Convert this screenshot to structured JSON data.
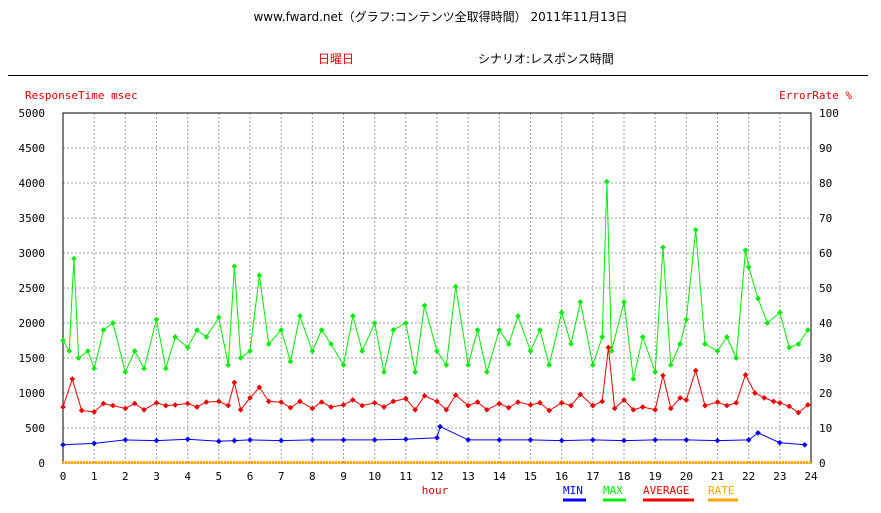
{
  "header": {
    "title": "www.fward.net（グラフ:コンテンツ全取得時間） 2011年11月13日",
    "day": "日曜日",
    "scenario": "シナリオ:レスポンス時間"
  },
  "chart_data": {
    "type": "line",
    "y_left_label": "ResponseTime msec",
    "y_right_label": "ErrorRate %",
    "xlabel": "hour",
    "xlim": [
      0,
      24
    ],
    "ylim_left": [
      0,
      5000
    ],
    "ylim_right": [
      0,
      100
    ],
    "x_ticks": [
      "0",
      "1",
      "2",
      "3",
      "4",
      "5",
      "6",
      "7",
      "8",
      "9",
      "10",
      "11",
      "12",
      "13",
      "14",
      "15",
      "16",
      "17",
      "18",
      "19",
      "20",
      "21",
      "22",
      "23",
      "24"
    ],
    "y_left_ticks": [
      "0",
      "500",
      "1000",
      "1500",
      "2000",
      "2500",
      "3000",
      "3500",
      "4000",
      "4500",
      "5000"
    ],
    "y_right_ticks": [
      "0",
      "10",
      "20",
      "30",
      "40",
      "50",
      "60",
      "70",
      "80",
      "90",
      "100"
    ],
    "grid": true,
    "legend_position": "bottom-right",
    "series": [
      {
        "name": "MIN",
        "axis": "left",
        "color": "#0000ff",
        "points": [
          [
            0,
            260
          ],
          [
            1,
            280
          ],
          [
            2,
            330
          ],
          [
            3,
            320
          ],
          [
            4,
            340
          ],
          [
            5,
            310
          ],
          [
            5.5,
            320
          ],
          [
            6,
            330
          ],
          [
            7,
            320
          ],
          [
            8,
            330
          ],
          [
            9,
            330
          ],
          [
            10,
            330
          ],
          [
            11,
            340
          ],
          [
            12,
            360
          ],
          [
            12.1,
            520
          ],
          [
            13,
            330
          ],
          [
            14,
            330
          ],
          [
            15,
            330
          ],
          [
            16,
            320
          ],
          [
            17,
            330
          ],
          [
            18,
            320
          ],
          [
            19,
            330
          ],
          [
            20,
            330
          ],
          [
            21,
            320
          ],
          [
            22,
            330
          ],
          [
            22.3,
            430
          ],
          [
            23,
            290
          ],
          [
            23.8,
            260
          ]
        ]
      },
      {
        "name": "MAX",
        "axis": "left",
        "color": "#00ee00",
        "points": [
          [
            0,
            1750
          ],
          [
            0.2,
            1600
          ],
          [
            0.35,
            2920
          ],
          [
            0.5,
            1500
          ],
          [
            0.8,
            1600
          ],
          [
            1,
            1350
          ],
          [
            1.3,
            1900
          ],
          [
            1.6,
            2000
          ],
          [
            2,
            1300
          ],
          [
            2.3,
            1600
          ],
          [
            2.6,
            1350
          ],
          [
            3,
            2050
          ],
          [
            3.3,
            1350
          ],
          [
            3.6,
            1800
          ],
          [
            4,
            1650
          ],
          [
            4.3,
            1900
          ],
          [
            4.6,
            1800
          ],
          [
            5,
            2080
          ],
          [
            5.3,
            1400
          ],
          [
            5.5,
            2810
          ],
          [
            5.7,
            1500
          ],
          [
            6,
            1600
          ],
          [
            6.3,
            2680
          ],
          [
            6.6,
            1700
          ],
          [
            7,
            1900
          ],
          [
            7.3,
            1450
          ],
          [
            7.6,
            2100
          ],
          [
            8,
            1600
          ],
          [
            8.3,
            1900
          ],
          [
            8.6,
            1700
          ],
          [
            9,
            1400
          ],
          [
            9.3,
            2100
          ],
          [
            9.6,
            1600
          ],
          [
            10,
            2000
          ],
          [
            10.3,
            1300
          ],
          [
            10.6,
            1900
          ],
          [
            11,
            2000
          ],
          [
            11.3,
            1300
          ],
          [
            11.6,
            2250
          ],
          [
            12,
            1600
          ],
          [
            12.3,
            1400
          ],
          [
            12.6,
            2520
          ],
          [
            13,
            1400
          ],
          [
            13.3,
            1900
          ],
          [
            13.6,
            1300
          ],
          [
            14,
            1900
          ],
          [
            14.3,
            1700
          ],
          [
            14.6,
            2100
          ],
          [
            15,
            1600
          ],
          [
            15.3,
            1900
          ],
          [
            15.6,
            1400
          ],
          [
            16,
            2150
          ],
          [
            16.3,
            1700
          ],
          [
            16.6,
            2300
          ],
          [
            17,
            1400
          ],
          [
            17.3,
            1800
          ],
          [
            17.45,
            4020
          ],
          [
            17.6,
            1600
          ],
          [
            18,
            2300
          ],
          [
            18.3,
            1200
          ],
          [
            18.6,
            1800
          ],
          [
            19,
            1300
          ],
          [
            19.25,
            3080
          ],
          [
            19.5,
            1400
          ],
          [
            19.8,
            1700
          ],
          [
            20,
            2050
          ],
          [
            20.3,
            3330
          ],
          [
            20.6,
            1700
          ],
          [
            21,
            1600
          ],
          [
            21.3,
            1800
          ],
          [
            21.6,
            1500
          ],
          [
            21.9,
            3040
          ],
          [
            22,
            2800
          ],
          [
            22.3,
            2350
          ],
          [
            22.6,
            2000
          ],
          [
            23,
            2150
          ],
          [
            23.3,
            1650
          ],
          [
            23.6,
            1700
          ],
          [
            23.9,
            1900
          ]
        ]
      },
      {
        "name": "AVERAGE",
        "axis": "left",
        "color": "#ee0000",
        "points": [
          [
            0,
            800
          ],
          [
            0.3,
            1200
          ],
          [
            0.6,
            750
          ],
          [
            1,
            730
          ],
          [
            1.3,
            850
          ],
          [
            1.6,
            820
          ],
          [
            2,
            780
          ],
          [
            2.3,
            850
          ],
          [
            2.6,
            760
          ],
          [
            3,
            860
          ],
          [
            3.3,
            820
          ],
          [
            3.6,
            830
          ],
          [
            4,
            850
          ],
          [
            4.3,
            800
          ],
          [
            4.6,
            870
          ],
          [
            5,
            880
          ],
          [
            5.3,
            820
          ],
          [
            5.5,
            1150
          ],
          [
            5.7,
            760
          ],
          [
            6,
            930
          ],
          [
            6.3,
            1080
          ],
          [
            6.6,
            880
          ],
          [
            7,
            870
          ],
          [
            7.3,
            790
          ],
          [
            7.6,
            880
          ],
          [
            8,
            780
          ],
          [
            8.3,
            870
          ],
          [
            8.6,
            800
          ],
          [
            9,
            830
          ],
          [
            9.3,
            900
          ],
          [
            9.6,
            820
          ],
          [
            10,
            860
          ],
          [
            10.3,
            800
          ],
          [
            10.6,
            880
          ],
          [
            11,
            920
          ],
          [
            11.3,
            760
          ],
          [
            11.6,
            960
          ],
          [
            12,
            880
          ],
          [
            12.3,
            760
          ],
          [
            12.6,
            970
          ],
          [
            13,
            820
          ],
          [
            13.3,
            870
          ],
          [
            13.6,
            760
          ],
          [
            14,
            850
          ],
          [
            14.3,
            790
          ],
          [
            14.6,
            870
          ],
          [
            15,
            830
          ],
          [
            15.3,
            860
          ],
          [
            15.6,
            750
          ],
          [
            16,
            860
          ],
          [
            16.3,
            820
          ],
          [
            16.6,
            980
          ],
          [
            17,
            820
          ],
          [
            17.3,
            880
          ],
          [
            17.5,
            1650
          ],
          [
            17.7,
            780
          ],
          [
            18,
            900
          ],
          [
            18.3,
            760
          ],
          [
            18.6,
            800
          ],
          [
            19,
            760
          ],
          [
            19.25,
            1250
          ],
          [
            19.5,
            780
          ],
          [
            19.8,
            930
          ],
          [
            20,
            900
          ],
          [
            20.3,
            1320
          ],
          [
            20.6,
            820
          ],
          [
            21,
            870
          ],
          [
            21.3,
            820
          ],
          [
            21.6,
            860
          ],
          [
            21.9,
            1260
          ],
          [
            22.2,
            1000
          ],
          [
            22.5,
            930
          ],
          [
            22.8,
            880
          ],
          [
            23,
            860
          ],
          [
            23.3,
            810
          ],
          [
            23.6,
            720
          ],
          [
            23.9,
            830
          ]
        ]
      },
      {
        "name": "RATE",
        "axis": "right",
        "color": "#ffa500",
        "points": [
          [
            0,
            0
          ],
          [
            24,
            0
          ]
        ]
      }
    ]
  }
}
